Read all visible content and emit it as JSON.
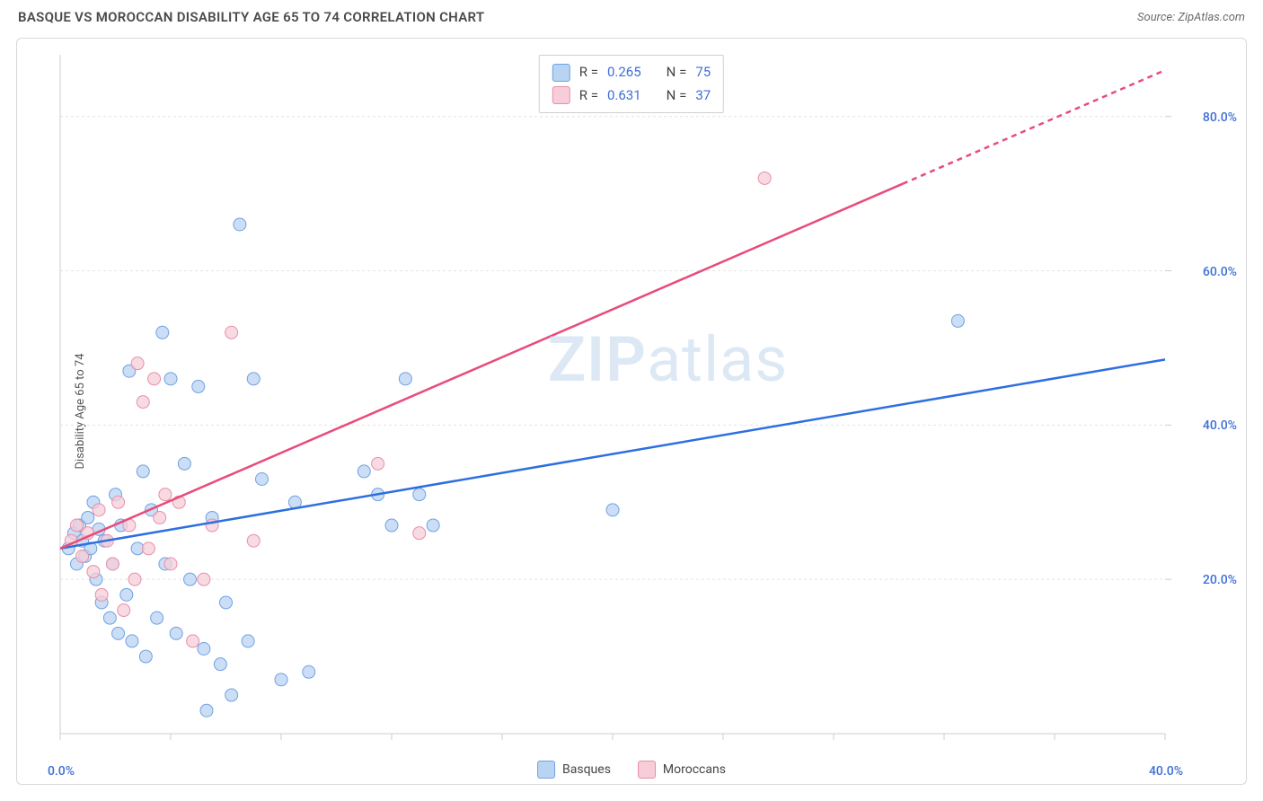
{
  "title": "BASQUE VS MOROCCAN DISABILITY AGE 65 TO 74 CORRELATION CHART",
  "source": "Source: ZipAtlas.com",
  "y_axis_label": "Disability Age 65 to 74",
  "watermark_bold": "ZIP",
  "watermark_rest": "atlas",
  "chart": {
    "type": "scatter",
    "xlim": [
      0,
      40
    ],
    "ylim": [
      0,
      88
    ],
    "x_ticks": [
      0,
      4,
      8,
      12,
      16,
      20,
      24,
      28,
      32,
      36,
      40
    ],
    "x_tick_labels": {
      "0": "0.0%",
      "40": "40.0%"
    },
    "y_ticks": [
      20,
      40,
      60,
      80
    ],
    "y_tick_labels": {
      "20": "20.0%",
      "40": "40.0%",
      "60": "60.0%",
      "80": "80.0%"
    },
    "grid_color": "#e3e3e3",
    "axis_color": "#cccccc",
    "background_color": "#ffffff",
    "series": [
      {
        "name": "Basques",
        "marker_fill": "#b9d3f3",
        "marker_stroke": "#6fa2e3",
        "marker_radius": 7,
        "line_color": "#2d6fe0",
        "line_width": 2.5,
        "R": 0.265,
        "N": 75,
        "regression": {
          "x0": 0,
          "y0": 24,
          "x1": 40,
          "y1": 48.5,
          "dash_from_x": null
        },
        "points": [
          [
            0.3,
            24
          ],
          [
            0.5,
            26
          ],
          [
            0.6,
            22
          ],
          [
            0.7,
            27
          ],
          [
            0.8,
            25
          ],
          [
            0.9,
            23
          ],
          [
            1.0,
            28
          ],
          [
            1.1,
            24
          ],
          [
            1.2,
            30
          ],
          [
            1.3,
            20
          ],
          [
            1.4,
            26.5
          ],
          [
            1.5,
            17
          ],
          [
            1.6,
            25
          ],
          [
            1.8,
            15
          ],
          [
            1.9,
            22
          ],
          [
            2.0,
            31
          ],
          [
            2.1,
            13
          ],
          [
            2.2,
            27
          ],
          [
            2.4,
            18
          ],
          [
            2.5,
            47
          ],
          [
            2.6,
            12
          ],
          [
            2.8,
            24
          ],
          [
            3.0,
            34
          ],
          [
            3.1,
            10
          ],
          [
            3.3,
            29
          ],
          [
            3.5,
            15
          ],
          [
            3.7,
            52
          ],
          [
            3.8,
            22
          ],
          [
            4.0,
            46
          ],
          [
            4.2,
            13
          ],
          [
            4.5,
            35
          ],
          [
            4.7,
            20
          ],
          [
            5.0,
            45
          ],
          [
            5.2,
            11
          ],
          [
            5.3,
            3
          ],
          [
            5.5,
            28
          ],
          [
            5.8,
            9
          ],
          [
            6.0,
            17
          ],
          [
            6.2,
            5
          ],
          [
            6.5,
            66
          ],
          [
            6.8,
            12
          ],
          [
            7.0,
            46
          ],
          [
            7.3,
            33
          ],
          [
            8.0,
            7
          ],
          [
            8.5,
            30
          ],
          [
            9.0,
            8
          ],
          [
            11.0,
            34
          ],
          [
            11.5,
            31
          ],
          [
            12.0,
            27
          ],
          [
            12.5,
            46
          ],
          [
            13.0,
            31
          ],
          [
            13.5,
            27
          ],
          [
            20.0,
            29
          ],
          [
            32.5,
            53.5
          ]
        ]
      },
      {
        "name": "Moroccans",
        "marker_fill": "#f6cdd8",
        "marker_stroke": "#e88fa8",
        "marker_radius": 7,
        "line_color": "#e94b7a",
        "line_width": 2.5,
        "R": 0.631,
        "N": 37,
        "regression": {
          "x0": 0,
          "y0": 24,
          "x1": 40,
          "y1": 86,
          "dash_from_x": 30.5
        },
        "points": [
          [
            0.4,
            25
          ],
          [
            0.6,
            27
          ],
          [
            0.8,
            23
          ],
          [
            1.0,
            26
          ],
          [
            1.2,
            21
          ],
          [
            1.4,
            29
          ],
          [
            1.5,
            18
          ],
          [
            1.7,
            25
          ],
          [
            1.9,
            22
          ],
          [
            2.1,
            30
          ],
          [
            2.3,
            16
          ],
          [
            2.5,
            27
          ],
          [
            2.7,
            20
          ],
          [
            2.8,
            48
          ],
          [
            3.0,
            43
          ],
          [
            3.2,
            24
          ],
          [
            3.4,
            46
          ],
          [
            3.6,
            28
          ],
          [
            3.8,
            31
          ],
          [
            4.0,
            22
          ],
          [
            4.3,
            30
          ],
          [
            4.8,
            12
          ],
          [
            5.2,
            20
          ],
          [
            5.5,
            27
          ],
          [
            6.2,
            52
          ],
          [
            7.0,
            25
          ],
          [
            11.5,
            35
          ],
          [
            13.0,
            26
          ],
          [
            25.5,
            72
          ]
        ]
      }
    ]
  },
  "legend_top": {
    "rows": [
      {
        "swatch_fill": "#b9d3f3",
        "swatch_stroke": "#6fa2e3",
        "R_label": "R =",
        "R_value": "0.265",
        "N_label": "N =",
        "N_value": "75"
      },
      {
        "swatch_fill": "#f6cdd8",
        "swatch_stroke": "#e88fa8",
        "R_label": "R =",
        "R_value": "0.631",
        "N_label": "N =",
        "N_value": "37"
      }
    ]
  },
  "legend_bottom": [
    {
      "swatch_fill": "#b9d3f3",
      "swatch_stroke": "#6fa2e3",
      "label": "Basques"
    },
    {
      "swatch_fill": "#f6cdd8",
      "swatch_stroke": "#e88fa8",
      "label": "Moroccans"
    }
  ]
}
